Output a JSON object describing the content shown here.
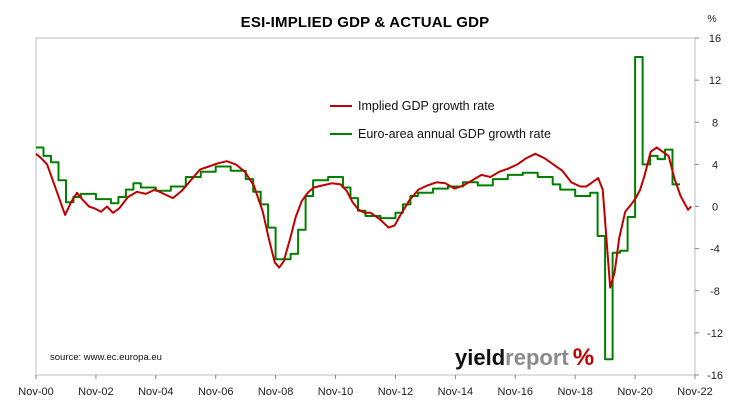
{
  "chart_data": {
    "type": "line",
    "title": "ESI-IMPLIED GDP & ACTUAL GDP",
    "y_unit": "%",
    "ylim": [
      -16,
      16
    ],
    "y_ticks": [
      -16,
      -12,
      -8,
      -4,
      0,
      4,
      8,
      12,
      16
    ],
    "x_tick_labels": [
      "Nov-00",
      "Nov-02",
      "Nov-04",
      "Nov-06",
      "Nov-08",
      "Nov-10",
      "Nov-12",
      "Nov-14",
      "Nov-16",
      "Nov-18",
      "Nov-20",
      "Nov-22"
    ],
    "x_range": [
      2000.83,
      2022.83
    ],
    "legend_position": "upper-center",
    "grid": false,
    "series": [
      {
        "name": "Implied GDP growth rate",
        "color": "#c00000",
        "points": [
          [
            2000.83,
            5.0
          ],
          [
            2001.0,
            4.6
          ],
          [
            2001.2,
            4.0
          ],
          [
            2001.4,
            2.4
          ],
          [
            2001.6,
            0.8
          ],
          [
            2001.8,
            -0.8
          ],
          [
            2002.0,
            0.4
          ],
          [
            2002.2,
            1.3
          ],
          [
            2002.4,
            0.6
          ],
          [
            2002.6,
            0.0
          ],
          [
            2002.8,
            -0.2
          ],
          [
            2003.0,
            -0.5
          ],
          [
            2003.2,
            0.0
          ],
          [
            2003.4,
            -0.6
          ],
          [
            2003.6,
            -0.2
          ],
          [
            2003.9,
            0.9
          ],
          [
            2004.2,
            1.4
          ],
          [
            2004.5,
            1.2
          ],
          [
            2004.8,
            1.6
          ],
          [
            2005.1,
            1.2
          ],
          [
            2005.4,
            0.8
          ],
          [
            2005.7,
            1.5
          ],
          [
            2006.0,
            2.5
          ],
          [
            2006.3,
            3.5
          ],
          [
            2006.6,
            3.8
          ],
          [
            2006.9,
            4.1
          ],
          [
            2007.2,
            4.3
          ],
          [
            2007.5,
            4.0
          ],
          [
            2007.8,
            3.3
          ],
          [
            2008.1,
            2.0
          ],
          [
            2008.4,
            -0.5
          ],
          [
            2008.6,
            -3.0
          ],
          [
            2008.8,
            -5.3
          ],
          [
            2008.95,
            -5.8
          ],
          [
            2009.1,
            -5.2
          ],
          [
            2009.3,
            -3.2
          ],
          [
            2009.5,
            -1.0
          ],
          [
            2009.7,
            0.5
          ],
          [
            2009.9,
            1.3
          ],
          [
            2010.1,
            1.8
          ],
          [
            2010.4,
            2.0
          ],
          [
            2010.7,
            2.2
          ],
          [
            2011.0,
            2.1
          ],
          [
            2011.2,
            1.5
          ],
          [
            2011.4,
            0.4
          ],
          [
            2011.6,
            -0.3
          ],
          [
            2011.8,
            -0.6
          ],
          [
            2012.0,
            -0.6
          ],
          [
            2012.3,
            -1.2
          ],
          [
            2012.6,
            -2.0
          ],
          [
            2012.8,
            -1.8
          ],
          [
            2013.0,
            -0.8
          ],
          [
            2013.3,
            0.6
          ],
          [
            2013.6,
            1.6
          ],
          [
            2013.9,
            2.0
          ],
          [
            2014.2,
            2.3
          ],
          [
            2014.5,
            2.2
          ],
          [
            2014.8,
            1.7
          ],
          [
            2015.1,
            2.0
          ],
          [
            2015.4,
            2.5
          ],
          [
            2015.7,
            3.0
          ],
          [
            2016.0,
            2.8
          ],
          [
            2016.3,
            3.3
          ],
          [
            2016.6,
            3.6
          ],
          [
            2016.9,
            4.0
          ],
          [
            2017.2,
            4.6
          ],
          [
            2017.5,
            5.0
          ],
          [
            2017.8,
            4.6
          ],
          [
            2018.1,
            4.0
          ],
          [
            2018.4,
            3.4
          ],
          [
            2018.7,
            2.3
          ],
          [
            2019.0,
            1.9
          ],
          [
            2019.2,
            1.9
          ],
          [
            2019.4,
            2.3
          ],
          [
            2019.6,
            2.7
          ],
          [
            2019.75,
            1.6
          ],
          [
            2019.9,
            -4.0
          ],
          [
            2020.0,
            -7.7
          ],
          [
            2020.15,
            -6.2
          ],
          [
            2020.3,
            -3.0
          ],
          [
            2020.5,
            -0.5
          ],
          [
            2020.7,
            0.2
          ],
          [
            2020.85,
            0.8
          ],
          [
            2021.0,
            1.6
          ],
          [
            2021.15,
            3.0
          ],
          [
            2021.35,
            5.2
          ],
          [
            2021.55,
            5.6
          ],
          [
            2021.75,
            5.2
          ],
          [
            2021.95,
            4.8
          ],
          [
            2022.15,
            2.6
          ],
          [
            2022.35,
            1.0
          ],
          [
            2022.5,
            0.2
          ],
          [
            2022.6,
            -0.3
          ],
          [
            2022.7,
            0.0
          ]
        ]
      },
      {
        "name": "Euro-area annual GDP growth rate",
        "color": "#008000",
        "points": [
          [
            2000.83,
            5.6
          ],
          [
            2001.08,
            5.6
          ],
          [
            2001.08,
            4.8
          ],
          [
            2001.33,
            4.8
          ],
          [
            2001.33,
            4.2
          ],
          [
            2001.58,
            4.2
          ],
          [
            2001.58,
            2.5
          ],
          [
            2001.83,
            2.5
          ],
          [
            2001.83,
            0.4
          ],
          [
            2002.08,
            0.4
          ],
          [
            2002.08,
            0.9
          ],
          [
            2002.33,
            0.9
          ],
          [
            2002.33,
            1.2
          ],
          [
            2002.83,
            1.2
          ],
          [
            2002.83,
            0.7
          ],
          [
            2003.33,
            0.7
          ],
          [
            2003.33,
            0.3
          ],
          [
            2003.58,
            0.3
          ],
          [
            2003.58,
            0.9
          ],
          [
            2003.83,
            0.9
          ],
          [
            2003.83,
            1.6
          ],
          [
            2004.08,
            1.6
          ],
          [
            2004.08,
            2.2
          ],
          [
            2004.33,
            2.2
          ],
          [
            2004.33,
            1.8
          ],
          [
            2004.83,
            1.8
          ],
          [
            2004.83,
            1.5
          ],
          [
            2005.33,
            1.5
          ],
          [
            2005.33,
            1.9
          ],
          [
            2005.83,
            1.9
          ],
          [
            2005.83,
            2.8
          ],
          [
            2006.33,
            2.8
          ],
          [
            2006.33,
            3.3
          ],
          [
            2006.83,
            3.3
          ],
          [
            2006.83,
            3.8
          ],
          [
            2007.33,
            3.8
          ],
          [
            2007.33,
            3.4
          ],
          [
            2007.83,
            3.4
          ],
          [
            2007.83,
            2.6
          ],
          [
            2008.08,
            2.6
          ],
          [
            2008.08,
            1.4
          ],
          [
            2008.33,
            1.4
          ],
          [
            2008.33,
            0.2
          ],
          [
            2008.58,
            0.2
          ],
          [
            2008.58,
            -2.0
          ],
          [
            2008.83,
            -2.0
          ],
          [
            2008.83,
            -5.0
          ],
          [
            2009.33,
            -5.0
          ],
          [
            2009.33,
            -4.5
          ],
          [
            2009.58,
            -4.5
          ],
          [
            2009.58,
            -2.2
          ],
          [
            2009.83,
            -2.2
          ],
          [
            2009.83,
            1.0
          ],
          [
            2010.08,
            1.0
          ],
          [
            2010.08,
            2.5
          ],
          [
            2010.58,
            2.5
          ],
          [
            2010.58,
            2.8
          ],
          [
            2011.08,
            2.8
          ],
          [
            2011.08,
            1.8
          ],
          [
            2011.33,
            1.8
          ],
          [
            2011.33,
            0.8
          ],
          [
            2011.58,
            0.8
          ],
          [
            2011.58,
            -0.4
          ],
          [
            2011.83,
            -0.4
          ],
          [
            2011.83,
            -0.9
          ],
          [
            2012.33,
            -0.9
          ],
          [
            2012.33,
            -1.1
          ],
          [
            2012.83,
            -1.1
          ],
          [
            2012.83,
            -0.6
          ],
          [
            2013.08,
            -0.6
          ],
          [
            2013.08,
            0.2
          ],
          [
            2013.33,
            0.2
          ],
          [
            2013.33,
            1.0
          ],
          [
            2013.58,
            1.0
          ],
          [
            2013.58,
            1.3
          ],
          [
            2014.08,
            1.3
          ],
          [
            2014.08,
            1.7
          ],
          [
            2014.58,
            1.7
          ],
          [
            2014.58,
            1.9
          ],
          [
            2015.08,
            1.9
          ],
          [
            2015.08,
            2.3
          ],
          [
            2015.58,
            2.3
          ],
          [
            2015.58,
            2.0
          ],
          [
            2016.08,
            2.0
          ],
          [
            2016.08,
            2.6
          ],
          [
            2016.58,
            2.6
          ],
          [
            2016.58,
            3.0
          ],
          [
            2017.08,
            3.0
          ],
          [
            2017.08,
            3.2
          ],
          [
            2017.58,
            3.2
          ],
          [
            2017.58,
            2.8
          ],
          [
            2018.08,
            2.8
          ],
          [
            2018.08,
            2.1
          ],
          [
            2018.33,
            2.1
          ],
          [
            2018.33,
            1.6
          ],
          [
            2018.83,
            1.6
          ],
          [
            2018.83,
            1.0
          ],
          [
            2019.33,
            1.0
          ],
          [
            2019.33,
            1.3
          ],
          [
            2019.58,
            1.3
          ],
          [
            2019.58,
            -2.8
          ],
          [
            2019.83,
            -2.8
          ],
          [
            2019.83,
            -14.5
          ],
          [
            2020.08,
            -14.5
          ],
          [
            2020.08,
            -4.4
          ],
          [
            2020.33,
            -4.4
          ],
          [
            2020.33,
            -4.2
          ],
          [
            2020.58,
            -4.2
          ],
          [
            2020.58,
            -1.0
          ],
          [
            2020.83,
            -1.0
          ],
          [
            2020.83,
            14.2
          ],
          [
            2021.08,
            14.2
          ],
          [
            2021.08,
            4.0
          ],
          [
            2021.33,
            4.0
          ],
          [
            2021.33,
            4.8
          ],
          [
            2021.58,
            4.8
          ],
          [
            2021.58,
            4.5
          ],
          [
            2021.83,
            4.5
          ],
          [
            2021.83,
            5.4
          ],
          [
            2022.08,
            5.4
          ],
          [
            2022.08,
            2.1
          ],
          [
            2022.33,
            2.1
          ]
        ]
      }
    ]
  },
  "source_text": "source: www.ec.europa.eu",
  "logo": {
    "part1": "yield",
    "part2": "report",
    "part3": "%"
  }
}
